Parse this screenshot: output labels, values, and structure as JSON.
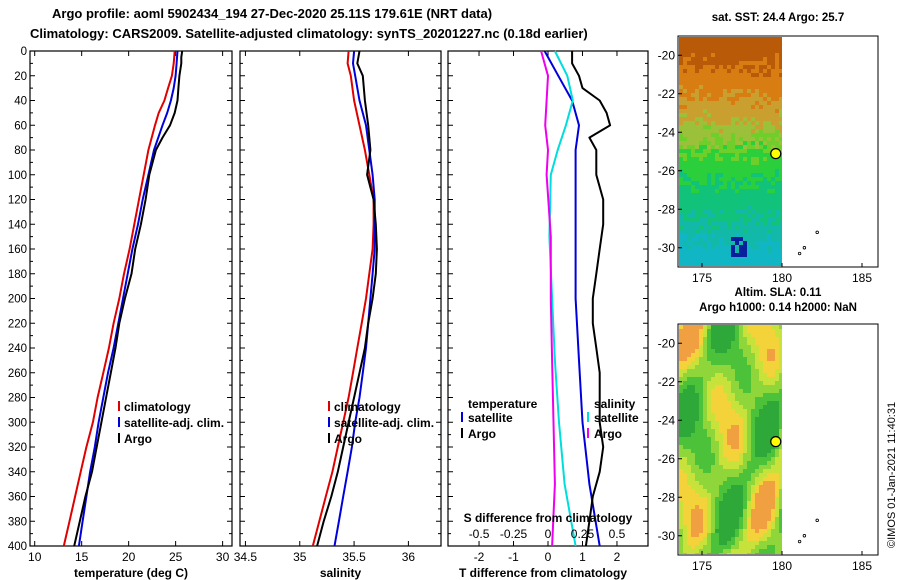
{
  "header": {
    "line1": "Argo profile: aoml 5902434_194 27-Dec-2020 25.11S 179.61E (NRT data)",
    "line2": "Climatology: CARS2009. Satellite-adjusted climatology: synTS_20201227.nc (0.18d earlier)"
  },
  "credit": "©IMOS 01-Jan-2021 11:40:31",
  "colors": {
    "climatology": "#e00000",
    "satellite": "#0000dd",
    "argo": "#000000",
    "t_diff": "#00dddd",
    "s_diff": "#ee00ee"
  },
  "chart_data": [
    {
      "type": "line",
      "name": "temperature",
      "xlabel": "temperature (deg C)",
      "ylabel": "",
      "xlim": [
        9.5,
        31
      ],
      "ylim": [
        400,
        0
      ],
      "xticks": [
        "10",
        "15",
        "20",
        "25",
        "30"
      ],
      "xtick_values": [
        10,
        15,
        20,
        25,
        30
      ],
      "yticks": [
        "0",
        "20",
        "40",
        "60",
        "80",
        "100",
        "120",
        "140",
        "160",
        "180",
        "200",
        "220",
        "240",
        "260",
        "280",
        "300",
        "320",
        "340",
        "360",
        "380",
        "400"
      ],
      "legend": [
        "climatology",
        "satellite-adj. clim.",
        "Argo"
      ],
      "series": [
        {
          "name": "climatology",
          "color_key": "climatology",
          "depth": [
            0,
            10,
            20,
            30,
            40,
            50,
            60,
            80,
            100,
            120,
            140,
            160,
            180,
            200,
            220,
            240,
            260,
            280,
            300,
            320,
            340,
            360,
            380,
            400
          ],
          "values": [
            24.9,
            24.8,
            24.6,
            24.2,
            23.8,
            23.2,
            22.8,
            22.1,
            21.6,
            21.1,
            20.6,
            20.1,
            19.5,
            19.0,
            18.4,
            17.9,
            17.3,
            16.7,
            16.2,
            15.5,
            14.9,
            14.3,
            13.7,
            13.1
          ]
        },
        {
          "name": "satellite-adj. clim.",
          "color_key": "satellite",
          "depth": [
            0,
            10,
            20,
            30,
            40,
            50,
            60,
            80,
            100,
            120,
            140,
            160,
            180,
            200,
            220,
            240,
            260,
            280,
            300,
            320,
            340,
            360,
            380,
            400
          ],
          "values": [
            25.2,
            25.1,
            25.0,
            24.8,
            24.5,
            24.1,
            23.6,
            22.7,
            22.1,
            21.5,
            21.0,
            20.4,
            19.9,
            19.4,
            18.9,
            18.4,
            17.8,
            17.3,
            16.8,
            16.4,
            15.9,
            15.5,
            15.1,
            14.7
          ]
        },
        {
          "name": "Argo",
          "color_key": "argo",
          "depth": [
            0,
            5,
            10,
            20,
            30,
            40,
            50,
            60,
            70,
            80,
            100,
            120,
            140,
            160,
            180,
            200,
            220,
            240,
            260,
            280,
            300,
            320,
            340,
            360,
            380,
            400
          ],
          "values": [
            25.7,
            25.6,
            25.6,
            25.4,
            25.3,
            25.2,
            24.9,
            24.4,
            23.6,
            22.9,
            22.2,
            21.8,
            21.3,
            20.7,
            20.3,
            19.6,
            19.0,
            18.6,
            18.1,
            17.6,
            17.1,
            16.6,
            16.1,
            15.4,
            14.8,
            14.2
          ]
        }
      ]
    },
    {
      "type": "line",
      "name": "salinity",
      "xlabel": "salinity",
      "ylabel": "",
      "xlim": [
        34.45,
        36.3
      ],
      "ylim": [
        400,
        0
      ],
      "xticks": [
        "34.5",
        "35",
        "35.5",
        "36"
      ],
      "xtick_values": [
        34.5,
        35,
        35.5,
        36
      ],
      "legend": [
        "climatology",
        "satellite-adj. clim.",
        "Argo"
      ],
      "series": [
        {
          "name": "climatology",
          "color_key": "climatology",
          "depth": [
            0,
            10,
            20,
            40,
            60,
            80,
            100,
            120,
            140,
            160,
            180,
            200,
            220,
            240,
            260,
            280,
            300,
            320,
            340,
            360,
            380,
            400
          ],
          "values": [
            35.45,
            35.44,
            35.47,
            35.5,
            35.55,
            35.6,
            35.64,
            35.68,
            35.68,
            35.67,
            35.64,
            35.61,
            35.57,
            35.53,
            35.49,
            35.45,
            35.4,
            35.35,
            35.3,
            35.24,
            35.18,
            35.12
          ]
        },
        {
          "name": "satellite-adj. clim.",
          "color_key": "satellite",
          "depth": [
            0,
            10,
            20,
            40,
            60,
            80,
            100,
            120,
            140,
            160,
            180,
            200,
            220,
            240,
            260,
            280,
            300,
            320,
            340,
            360,
            380,
            400
          ],
          "values": [
            35.5,
            35.49,
            35.51,
            35.55,
            35.61,
            35.64,
            35.67,
            35.69,
            35.69,
            35.69,
            35.67,
            35.65,
            35.63,
            35.61,
            35.58,
            35.55,
            35.51,
            35.48,
            35.44,
            35.4,
            35.36,
            35.32
          ]
        },
        {
          "name": "Argo",
          "color_key": "argo",
          "depth": [
            0,
            10,
            20,
            40,
            60,
            80,
            100,
            120,
            140,
            160,
            180,
            200,
            220,
            240,
            260,
            280,
            300,
            320,
            340,
            360,
            380,
            400
          ],
          "values": [
            35.55,
            35.53,
            35.58,
            35.6,
            35.63,
            35.65,
            35.62,
            35.68,
            35.7,
            35.71,
            35.7,
            35.67,
            35.63,
            35.6,
            35.55,
            35.5,
            35.45,
            35.4,
            35.35,
            35.29,
            35.22,
            35.16
          ]
        }
      ]
    },
    {
      "type": "line",
      "name": "difference",
      "xlabel": "T difference from climatology",
      "xlabel_top": "S difference from climatology",
      "xlim": [
        -2.9,
        2.9
      ],
      "ylim": [
        400,
        0
      ],
      "xticks": [
        "-2",
        "-1",
        "0",
        "1",
        "2"
      ],
      "xtick_values": [
        -2,
        -1,
        0,
        1,
        2
      ],
      "xticks_top": [
        "-0.5",
        "-0.25",
        "0",
        "0.25",
        "0.5"
      ],
      "xtick_top_values": [
        -0.5,
        -0.25,
        0,
        0.25,
        0.5
      ],
      "legend_left_title": "temperature",
      "legend_right_title": "salinity",
      "legend": [
        "satellite",
        "Argo"
      ],
      "series": [
        {
          "name": "T satellite",
          "color_key": "satellite",
          "axis": "T",
          "depth": [
            0,
            20,
            40,
            60,
            80,
            100,
            150,
            200,
            250,
            300,
            350,
            400
          ],
          "values": [
            -0.1,
            0.3,
            0.7,
            0.9,
            0.8,
            0.8,
            0.8,
            0.8,
            0.9,
            1.0,
            1.2,
            1.5
          ]
        },
        {
          "name": "T Argo",
          "color_key": "argo",
          "axis": "T",
          "depth": [
            0,
            10,
            20,
            30,
            40,
            50,
            60,
            70,
            80,
            100,
            120,
            140,
            160,
            180,
            200,
            220,
            240,
            260,
            280,
            300,
            320,
            340,
            360,
            380,
            400
          ],
          "values": [
            0.7,
            0.7,
            0.9,
            1.0,
            1.5,
            1.7,
            1.8,
            1.2,
            1.4,
            1.4,
            1.6,
            1.6,
            1.5,
            1.4,
            1.3,
            1.3,
            1.4,
            1.5,
            1.5,
            1.5,
            1.6,
            1.5,
            1.3,
            1.2,
            1.1
          ]
        },
        {
          "name": "S satellite",
          "color_key": "t_diff",
          "axis": "S",
          "depth": [
            0,
            20,
            40,
            60,
            80,
            100,
            150,
            200,
            250,
            300,
            350,
            400
          ],
          "values": [
            0.05,
            0.14,
            0.18,
            0.13,
            0.07,
            0.02,
            0.01,
            0.03,
            0.05,
            0.08,
            0.12,
            0.2
          ]
        },
        {
          "name": "S Argo",
          "color_key": "s_diff",
          "axis": "S",
          "depth": [
            0,
            20,
            40,
            60,
            80,
            100,
            150,
            200,
            250,
            300,
            350,
            400
          ],
          "values": [
            -0.05,
            0.0,
            -0.01,
            -0.02,
            0.0,
            -0.01,
            0.02,
            0.02,
            0.03,
            0.04,
            0.05,
            0.03
          ]
        }
      ]
    },
    {
      "type": "heatmap",
      "name": "sst-map",
      "title": "sat. SST: 24.4 Argo: 25.7",
      "xlim": [
        173.5,
        186
      ],
      "ylim": [
        -31,
        -19
      ],
      "xticks": [
        "175",
        "180",
        "185"
      ],
      "xtick_values": [
        175,
        180,
        185
      ],
      "yticks": [
        "-20",
        "-22",
        "-24",
        "-26",
        "-28",
        "-30"
      ],
      "ytick_values": [
        -20,
        -22,
        -24,
        -26,
        -28,
        -30
      ],
      "data_east_limit": 180,
      "argo_position": {
        "lon": 179.61,
        "lat": -25.11
      }
    },
    {
      "type": "heatmap",
      "name": "sla-map",
      "title": "Altim. SLA: 0.11",
      "subtitle": "Argo h1000: 0.14 h2000: NaN",
      "xlim": [
        173.5,
        186
      ],
      "ylim": [
        -31,
        -19
      ],
      "xticks": [
        "175",
        "180",
        "185"
      ],
      "xtick_values": [
        175,
        180,
        185
      ],
      "yticks": [
        "-20",
        "-22",
        "-24",
        "-26",
        "-28",
        "-30"
      ],
      "ytick_values": [
        -20,
        -22,
        -24,
        -26,
        -28,
        -30
      ],
      "data_east_limit": 180,
      "argo_position": {
        "lon": 179.61,
        "lat": -25.11
      }
    }
  ]
}
